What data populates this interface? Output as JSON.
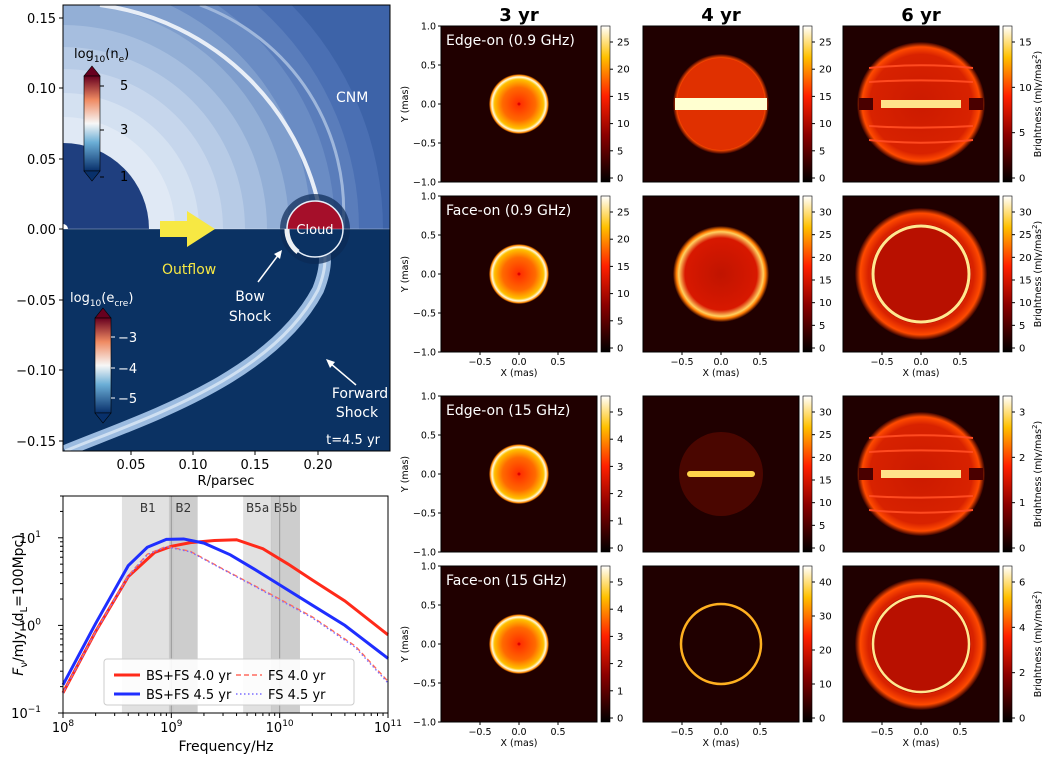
{
  "colors": {
    "cnm_bg": "#3d63a8",
    "shock_bg": "#0b3263",
    "cloud": "#a50f2a",
    "arrow": "#f7e843",
    "bs_fs_40": "#ff2a1a",
    "bs_fs_45": "#1f2eff",
    "fs_40": "#ff6b5e",
    "fs_45": "#7a6cff"
  },
  "sim": {
    "xlabel": "R/parsec",
    "xticks": [
      "0.05",
      "0.10",
      "0.15",
      "0.20"
    ],
    "yticks": [
      "0.15",
      "0.10",
      "0.05",
      "0.00",
      "−0.05",
      "−0.10",
      "−0.15"
    ],
    "cb_top": {
      "label_main": "log",
      "label_sub": "10",
      "label_arg": "(n",
      "label_arg_sub": "e",
      "label_close": ")",
      "ticks": [
        "5",
        "3",
        "1"
      ]
    },
    "cb_bottom": {
      "label_main": "log",
      "label_sub": "10",
      "label_arg": "(e",
      "label_arg_sub": "cre",
      "label_close": ")",
      "ticks": [
        "−3",
        "−4",
        "−5"
      ]
    },
    "labels": {
      "cnm": "CNM",
      "cloud": "Cloud",
      "outflow": "Outflow",
      "bow1": "Bow",
      "bow2": "Shock",
      "fwd1": "Forward",
      "fwd2": "Shock",
      "time": "t=4.5 yr"
    }
  },
  "chart_data": {
    "type": "line",
    "xscale": "log",
    "yscale": "log",
    "xlim": [
      100000000,
      100000000000
    ],
    "ylim": [
      0.1,
      30
    ],
    "xlabel": "Frequency/Hz",
    "ylabel_main": "F",
    "ylabel_sub": "ν",
    "ylabel_rest": "/mJy (d",
    "ylabel_sub2": "L",
    "ylabel_end": "=100Mpc)",
    "xticks": [
      {
        "base": "10",
        "exp": "8"
      },
      {
        "base": "10",
        "exp": "9"
      },
      {
        "base": "10",
        "exp": "10"
      },
      {
        "base": "10",
        "exp": "11"
      }
    ],
    "yticks": [
      {
        "base": "10",
        "exp": "−1"
      },
      {
        "base": "10",
        "exp": "0"
      },
      {
        "base": "10",
        "exp": "1"
      }
    ],
    "bands": [
      {
        "name": "B1",
        "lo": 350000000,
        "hi": 1050000000
      },
      {
        "name": "B2",
        "lo": 950000000,
        "hi": 1750000000
      },
      {
        "name": "B5a",
        "lo": 4600000000,
        "hi": 8500000000
      },
      {
        "name": "B5b",
        "lo": 8300000000,
        "hi": 15400000000
      }
    ],
    "series": [
      {
        "name": "BS+FS 4.0 yr",
        "style": "solid",
        "x": [
          100000000,
          200000000,
          400000000,
          700000000,
          1000000000,
          1500000000,
          2500000000,
          4000000000,
          7000000000,
          12000000000,
          20000000000,
          40000000000,
          100000000000
        ],
        "y": [
          0.17,
          0.85,
          3.6,
          6.8,
          8.0,
          8.8,
          9.3,
          9.5,
          7.5,
          5.0,
          3.3,
          1.9,
          0.78
        ]
      },
      {
        "name": "BS+FS 4.5 yr",
        "style": "solid",
        "x": [
          100000000,
          200000000,
          400000000,
          600000000,
          900000000,
          1300000000,
          2000000000,
          3500000000,
          6000000000,
          10000000000,
          20000000000,
          40000000000,
          100000000000
        ],
        "y": [
          0.21,
          1.05,
          4.8,
          7.8,
          9.6,
          9.7,
          8.7,
          6.4,
          4.3,
          2.9,
          1.7,
          1.0,
          0.42
        ]
      },
      {
        "name": "FS 4.0 yr",
        "style": "dashed",
        "x": [
          100000000,
          200000000,
          400000000,
          600000000,
          900000000,
          1500000000,
          3000000000,
          6000000000,
          10000000000,
          20000000000,
          50000000000,
          100000000000
        ],
        "y": [
          0.17,
          0.85,
          3.7,
          6.5,
          8.0,
          7.0,
          4.4,
          2.8,
          2.0,
          1.25,
          0.58,
          0.23
        ]
      },
      {
        "name": "FS 4.5 yr",
        "style": "dotted",
        "x": [
          100000000,
          200000000,
          400000000,
          600000000,
          900000000,
          1500000000,
          3000000000,
          6000000000,
          10000000000,
          20000000000,
          50000000000,
          100000000000
        ],
        "y": [
          0.17,
          0.85,
          3.6,
          6.4,
          7.9,
          6.9,
          4.35,
          2.75,
          1.95,
          1.22,
          0.56,
          0.22
        ]
      }
    ]
  },
  "maps": {
    "columns": [
      "3 yr",
      "4 yr",
      "6 yr"
    ],
    "ylabel": "Y (mas)",
    "xlabel": "X (mas)",
    "cb_label": "Brightness (mJy/mas",
    "cb_label_sup": "2",
    "cb_label_end": ")",
    "xticks": [
      "−0.5",
      "0.0",
      "0.5"
    ],
    "yticks": [
      "1.0",
      "0.5",
      "0.0",
      "−0.5",
      "−1.0"
    ],
    "rows": [
      {
        "label": "Edge-on (0.9 GHz)",
        "cb_ticks": [
          [
            "25",
            "20",
            "15",
            "10",
            "5",
            "0"
          ],
          [
            "25",
            "20",
            "15",
            "10",
            "5",
            "0"
          ],
          [
            "15",
            "10",
            "5",
            "0"
          ]
        ]
      },
      {
        "label": "Face-on (0.9 GHz)",
        "cb_ticks": [
          [
            "25",
            "20",
            "15",
            "10",
            "5",
            "0"
          ],
          [
            "30",
            "25",
            "20",
            "15",
            "10",
            "5",
            "0"
          ],
          [
            "30",
            "25",
            "20",
            "15",
            "10",
            "5",
            "0"
          ]
        ]
      },
      {
        "label": "Edge-on (15 GHz)",
        "cb_ticks": [
          [
            "5",
            "4",
            "3",
            "2",
            "1",
            "0"
          ],
          [
            "30",
            "25",
            "20",
            "15",
            "10",
            "5",
            "0"
          ],
          [
            "3",
            "2",
            "1",
            "0"
          ]
        ]
      },
      {
        "label": "Face-on (15 GHz)",
        "cb_ticks": [
          [
            "5",
            "4",
            "3",
            "2",
            "1",
            "0"
          ],
          [
            "40",
            "30",
            "20",
            "10",
            "0"
          ],
          [
            "6",
            "4",
            "2",
            "0"
          ]
        ]
      }
    ]
  }
}
